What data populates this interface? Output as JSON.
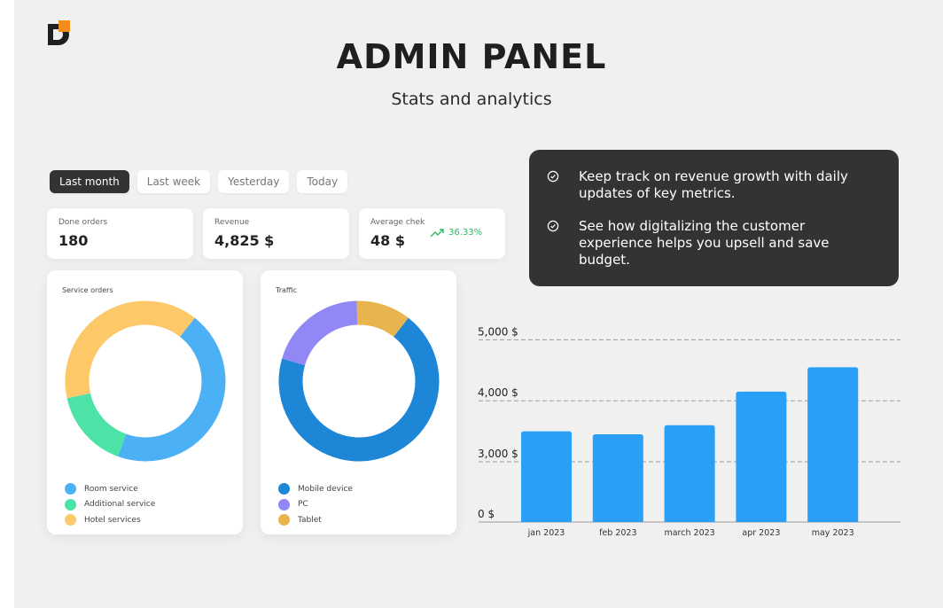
{
  "header": {
    "title": "ADMIN PANEL",
    "subtitle": "Stats and analytics"
  },
  "logo": {
    "icon": "brand-d-logo",
    "colors": [
      "#1f1f1f",
      "#f28c1b"
    ]
  },
  "filters": [
    {
      "label": "Last month",
      "active": true
    },
    {
      "label": "Last week",
      "active": false
    },
    {
      "label": "Yesterday",
      "active": false
    },
    {
      "label": "Today",
      "active": false
    }
  ],
  "kpis": [
    {
      "label": "Done orders",
      "value": "180"
    },
    {
      "label": "Revenue",
      "value": "4,825 $"
    },
    {
      "label": "Average chek",
      "value": "48 $",
      "trend": "36.33%",
      "trend_icon": "trend-up-icon",
      "trend_color": "#2fb766"
    }
  ],
  "service_orders": {
    "title": "Service orders",
    "segments": [
      {
        "label": "Room service",
        "share": 0.45,
        "color": "#4cb0f5"
      },
      {
        "label": "Additional service",
        "share": 0.16,
        "color": "#4ee3a6"
      },
      {
        "label": "Hotel services",
        "share": 0.39,
        "color": "#fdc868"
      }
    ]
  },
  "traffic": {
    "title": "Traffic",
    "segments": [
      {
        "label": "Mobile device",
        "share": 0.69,
        "color": "#1d86d6"
      },
      {
        "label": "PC",
        "share": 0.2,
        "color": "#9187f5"
      },
      {
        "label": "Tablet",
        "share": 0.11,
        "color": "#e7b44d"
      }
    ]
  },
  "info": {
    "points": [
      {
        "icon": "check-circle-icon",
        "text": "Keep track on revenue growth with daily updates of key metrics."
      },
      {
        "icon": "check-circle-icon",
        "text": "See how digitalizing the customer experience helps you upsell and save budget."
      }
    ]
  },
  "chart_data": {
    "type": "bar",
    "categories": [
      "jan 2023",
      "feb 2023",
      "march 2023",
      "apr 2023",
      "may 2023"
    ],
    "values": [
      3500,
      3450,
      3600,
      4150,
      4550
    ],
    "tick_labels": [
      "5,000 $",
      "4,000 $",
      "3,000 $",
      "0 $"
    ],
    "y_ticks": [
      5000,
      4000,
      3000,
      0
    ],
    "ylim": [
      0,
      5000
    ],
    "axis_break": "between 0 and 3,000",
    "grid": "dashed horizontal",
    "bar_color": "#299ff6",
    "title": "",
    "xlabel": "",
    "ylabel": ""
  }
}
